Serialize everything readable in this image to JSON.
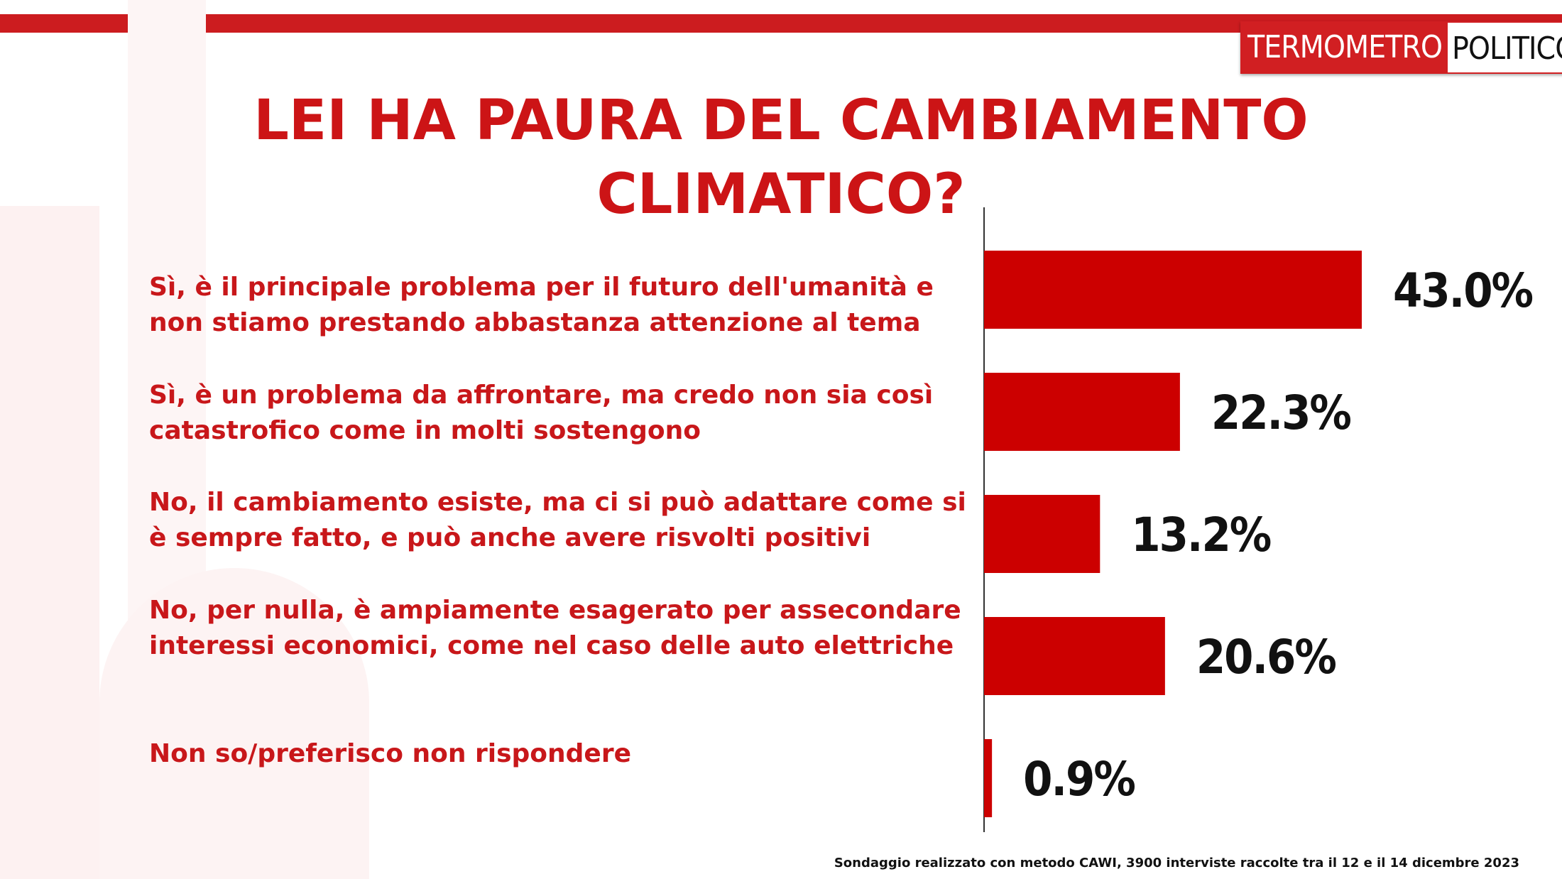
{
  "logo": {
    "part1": "TERMOMETRO",
    "part2": "POLITICO"
  },
  "title_lines": [
    "LEI HA PAURA DEL CAMBIAMENTO",
    "CLIMATICO?"
  ],
  "chart_data": {
    "type": "bar",
    "orientation": "horizontal",
    "title": "LEI HA PAURA DEL CAMBIAMENTO CLIMATICO?",
    "categories": [
      "Sì, è il principale problema per il futuro dell'umanità  e non stiamo prestando abbastanza attenzione al tema",
      "Sì, è un problema da affrontare, ma credo non sia così catastrofico come in molti sostengono",
      "No, il cambiamento esiste, ma ci si può adattare come si è sempre fatto, e può anche avere risvolti positivi",
      "No, per nulla, è ampiamente esagerato per assecondare interessi economici, come nel caso delle auto elettriche",
      "Non so/preferisco non rispondere"
    ],
    "values": [
      43.0,
      22.3,
      13.2,
      20.6,
      0.9
    ],
    "value_labels": [
      "43.0%",
      "22.3%",
      "13.2%",
      "20.6%",
      "0.9%"
    ],
    "bar_color": "#cc0000",
    "grid": false,
    "legend": "none"
  },
  "footnote": "Sondaggio realizzato con metodo CAWI, 3900 interviste raccolte tra il 12 e il 14 dicembre 2023",
  "colors": {
    "accent": "#cc1c1f",
    "title": "#cc1416",
    "label": "#c8171a",
    "value": "#111111"
  }
}
